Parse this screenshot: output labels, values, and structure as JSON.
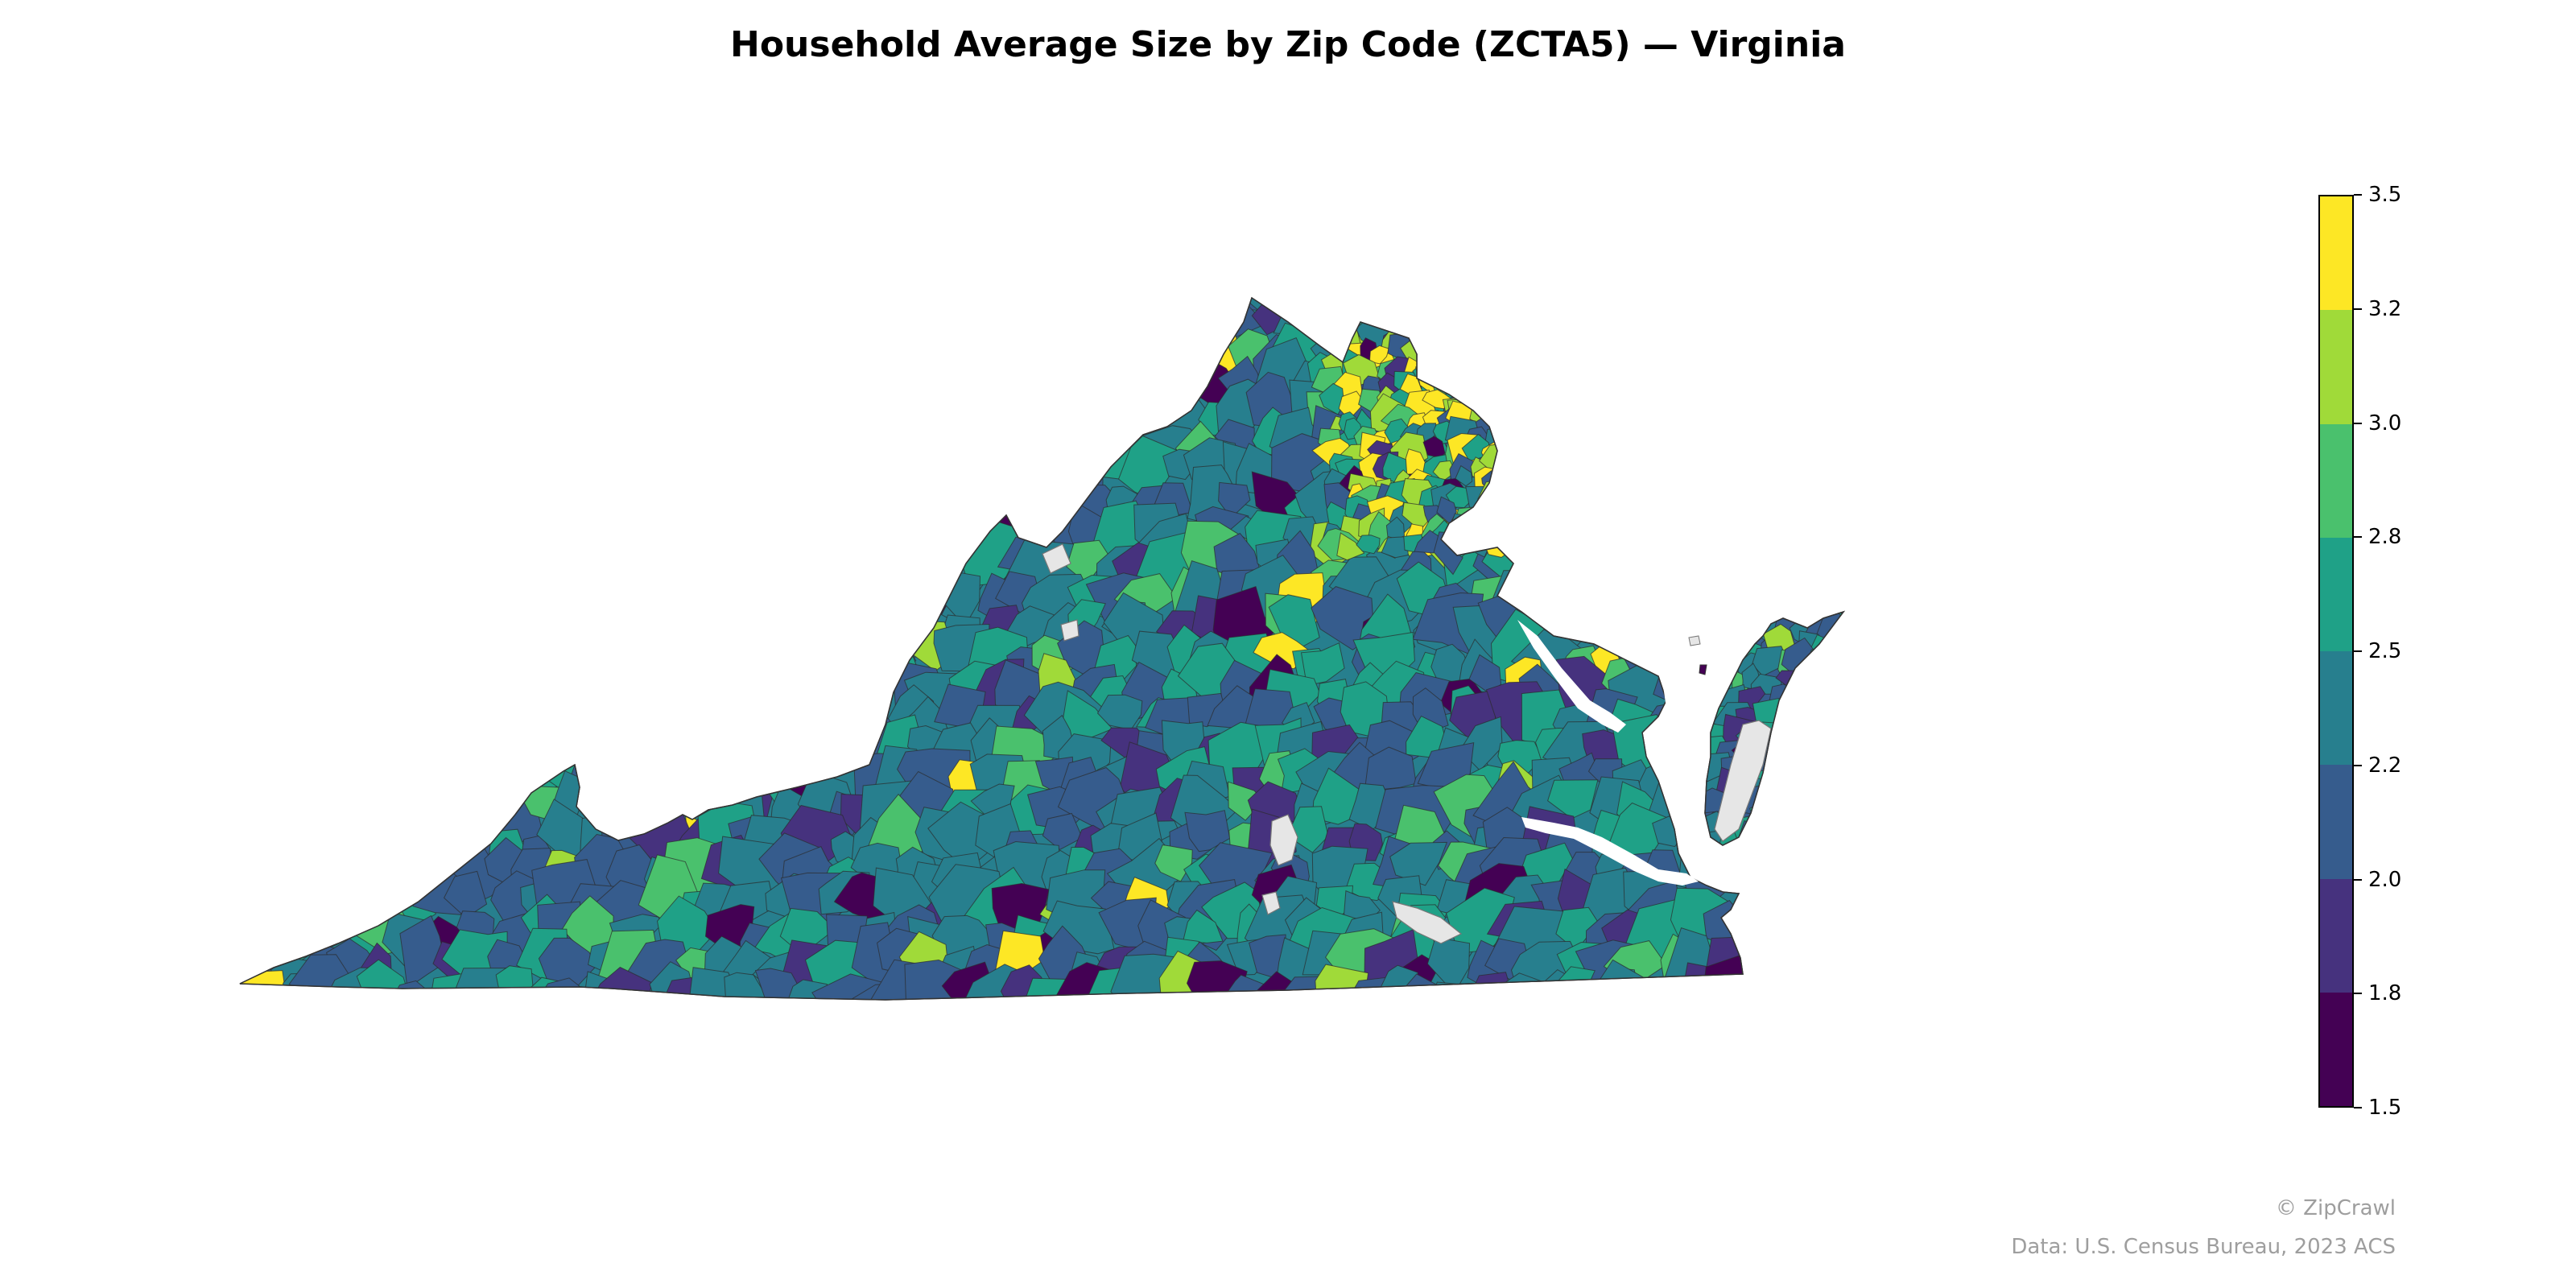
{
  "title": "Household Average Size by Zip Code (ZCTA5) — Virginia",
  "legend": {
    "ticks": [
      "1.5",
      "1.8",
      "2.0",
      "2.2",
      "2.5",
      "2.8",
      "3.0",
      "3.2",
      "3.5"
    ],
    "bins": [
      {
        "min": 1.5,
        "max": 1.8,
        "color": "#440154"
      },
      {
        "min": 1.8,
        "max": 2.0,
        "color": "#46327e"
      },
      {
        "min": 2.0,
        "max": 2.2,
        "color": "#365c8d"
      },
      {
        "min": 2.2,
        "max": 2.5,
        "color": "#277f8e"
      },
      {
        "min": 2.5,
        "max": 2.8,
        "color": "#1fa187"
      },
      {
        "min": 2.8,
        "max": 3.0,
        "color": "#4ac16d"
      },
      {
        "min": 3.0,
        "max": 3.2,
        "color": "#a0da39"
      },
      {
        "min": 3.2,
        "max": 3.5,
        "color": "#fde725"
      }
    ],
    "no_data_color": "#e6e6e6"
  },
  "credits": {
    "brand": "© ZipCrawl",
    "source": "Data: U.S. Census Bureau, 2023 ACS"
  }
}
